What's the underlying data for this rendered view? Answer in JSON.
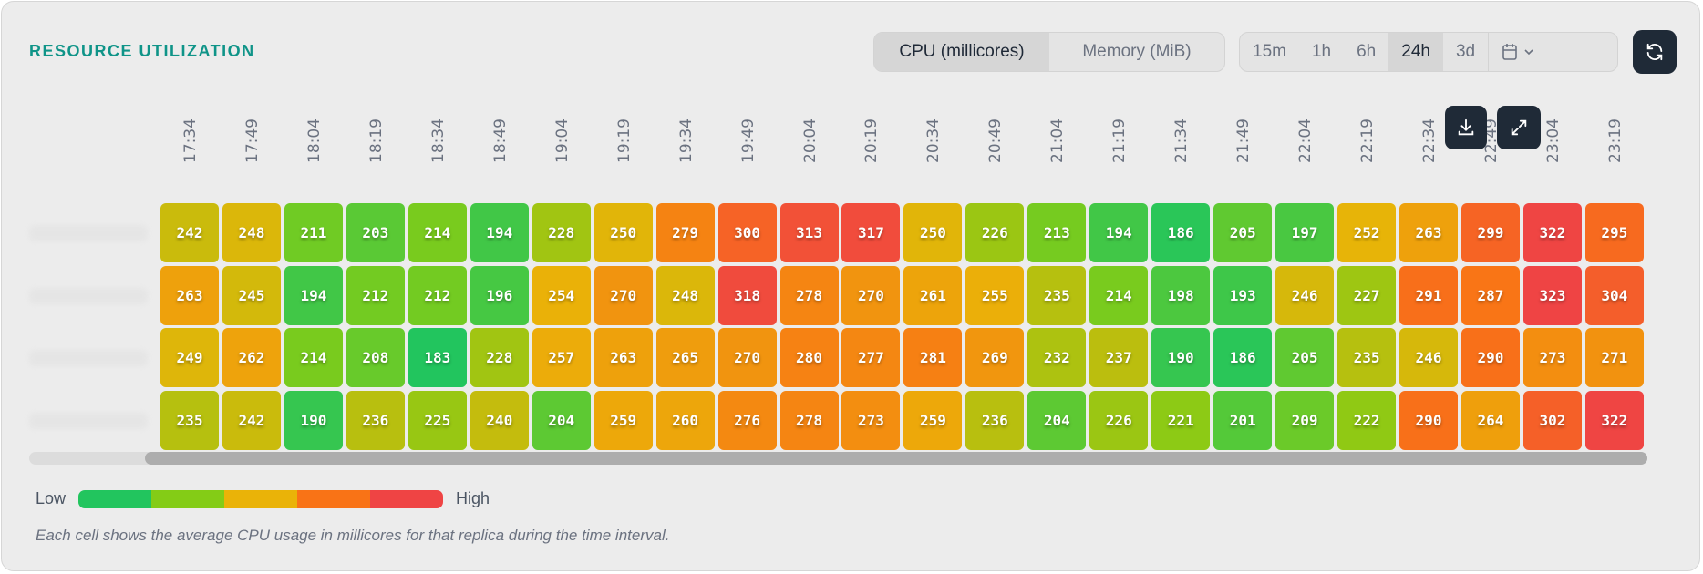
{
  "title": "RESOURCE UTILIZATION",
  "metric_toggle": {
    "options": [
      "CPU (millicores)",
      "Memory (MiB)"
    ],
    "selected": "CPU (millicores)"
  },
  "range_toggle": {
    "options": [
      "15m",
      "1h",
      "6h",
      "24h",
      "3d"
    ],
    "selected": "24h",
    "calendar_icon": "calendar-icon"
  },
  "icons": {
    "refresh": "refresh-icon",
    "download": "download-icon",
    "expand": "expand-icon"
  },
  "chart_data": {
    "type": "heatmap",
    "x": [
      "17:34",
      "17:49",
      "18:04",
      "18:19",
      "18:34",
      "18:49",
      "19:04",
      "19:19",
      "19:34",
      "19:49",
      "20:04",
      "20:19",
      "20:34",
      "20:49",
      "21:04",
      "21:19",
      "21:34",
      "21:49",
      "22:04",
      "22:19",
      "22:34",
      "22:49",
      "23:04",
      "23:19"
    ],
    "rows": [
      [
        242,
        248,
        211,
        203,
        214,
        194,
        228,
        250,
        279,
        300,
        313,
        317,
        250,
        226,
        213,
        194,
        186,
        205,
        197,
        252,
        263,
        299,
        322,
        295
      ],
      [
        263,
        245,
        194,
        212,
        212,
        196,
        254,
        270,
        248,
        318,
        278,
        270,
        261,
        255,
        235,
        214,
        198,
        193,
        246,
        227,
        291,
        287,
        323,
        304
      ],
      [
        249,
        262,
        214,
        208,
        183,
        228,
        257,
        263,
        265,
        270,
        280,
        277,
        281,
        269,
        232,
        237,
        190,
        186,
        205,
        235,
        246,
        290,
        273,
        271
      ],
      [
        235,
        242,
        190,
        236,
        225,
        240,
        204,
        259,
        260,
        276,
        278,
        273,
        259,
        236,
        204,
        226,
        221,
        201,
        209,
        222,
        290,
        264,
        302,
        322
      ]
    ],
    "color_scale": [
      "#22c55e",
      "#84cc16",
      "#eab308",
      "#f97316",
      "#ef4444"
    ]
  },
  "legend": {
    "low": "Low",
    "high": "High"
  },
  "note": "Each cell shows the average CPU usage in millicores for that replica during the time interval."
}
